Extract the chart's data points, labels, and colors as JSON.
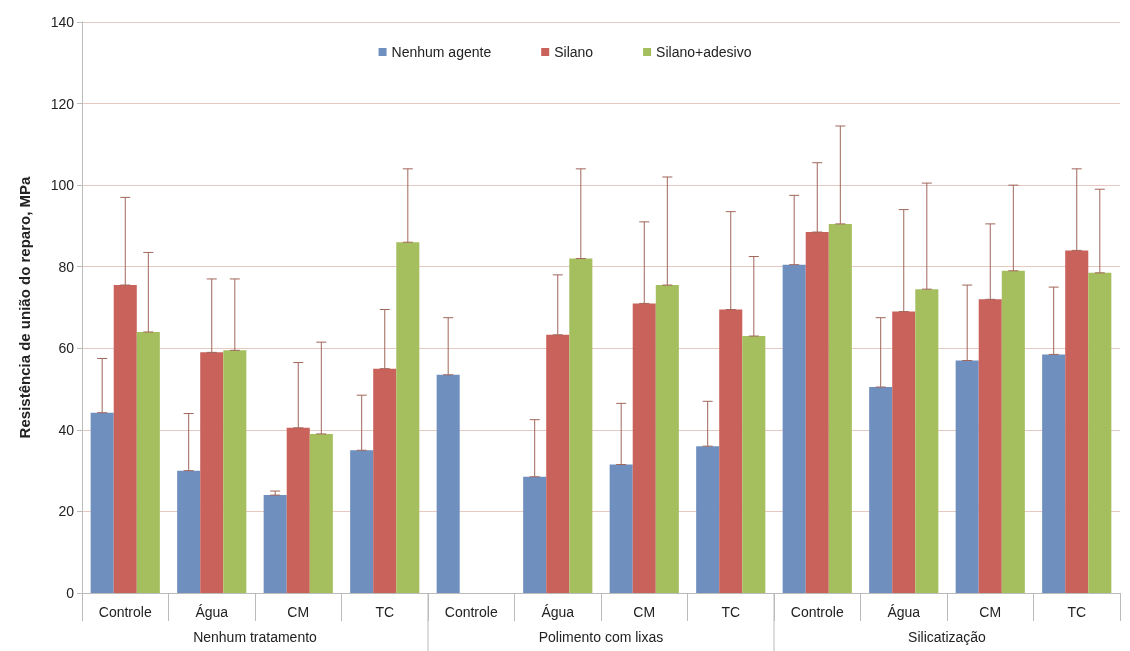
{
  "chart_data": {
    "type": "bar",
    "ylabel": "Resistência de união do reparo, MPa",
    "categories": [
      "Controle",
      "Água",
      "CM",
      "TC",
      "Controle",
      "Água",
      "CM",
      "TC",
      "Controle",
      "Água",
      "CM",
      "TC"
    ],
    "annotations": [
      "Nenhum tratamento",
      "Polimento com lixas",
      "Silicatização"
    ],
    "series": [
      {
        "name": "Nenhum agente",
        "color": "#6f8fbf",
        "values": [
          44.2,
          30,
          24,
          35,
          53.5,
          28.5,
          31.5,
          36,
          80.5,
          50.5,
          57,
          58.5
        ],
        "errors": [
          [
            44.2,
            57.5
          ],
          [
            30,
            44
          ],
          [
            24,
            25
          ],
          [
            35,
            48.5
          ],
          [
            53.5,
            67.5
          ],
          [
            28.5,
            42.5
          ],
          [
            31.5,
            46.5
          ],
          [
            36,
            47
          ],
          [
            80.5,
            97.5
          ],
          [
            50.5,
            67.5
          ],
          [
            57,
            75.5
          ],
          [
            58.5,
            75
          ]
        ]
      },
      {
        "name": "Silano",
        "color": "#c9625a",
        "values": [
          75.5,
          59,
          40.5,
          55,
          null,
          63.3,
          71,
          69.5,
          88.5,
          69,
          72,
          84
        ],
        "errors": [
          [
            75.5,
            97
          ],
          [
            59,
            77
          ],
          [
            40.5,
            56.5
          ],
          [
            55,
            69.5
          ],
          null,
          [
            63.3,
            78
          ],
          [
            71,
            91
          ],
          [
            69.5,
            93.5
          ],
          [
            88.5,
            105.5
          ],
          [
            69,
            94
          ],
          [
            72,
            90.5
          ],
          [
            84,
            104
          ]
        ]
      },
      {
        "name": "Silano+adesivo",
        "color": "#a5bf5f",
        "values": [
          64,
          59.5,
          39,
          86,
          null,
          82,
          75.5,
          63,
          90.5,
          74.5,
          79,
          78.5
        ],
        "errors": [
          [
            64,
            83.5
          ],
          [
            59.5,
            77
          ],
          [
            39,
            61.5
          ],
          [
            86,
            104
          ],
          null,
          [
            82,
            104
          ],
          [
            75.5,
            102
          ],
          [
            63,
            82.5
          ],
          [
            90.5,
            114.5
          ],
          [
            74.5,
            100.5
          ],
          [
            79,
            100
          ],
          [
            78.5,
            99
          ]
        ]
      }
    ],
    "ylim": [
      0,
      140
    ],
    "yticks": [
      0,
      20,
      40,
      60,
      80,
      100,
      120,
      140
    ],
    "grid": "y",
    "legend": "top"
  }
}
